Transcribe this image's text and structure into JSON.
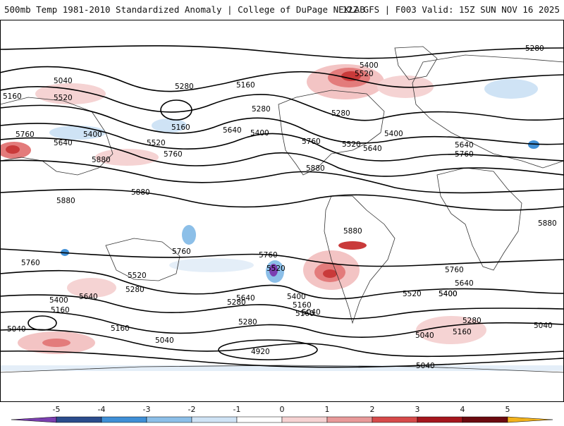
{
  "header": {
    "title_left": "500mb Temp 1981-2010 Standardized Anomaly | College of DuPage NEXLAB",
    "title_right": "12Z GFS | F003 Valid: 15Z SUN NOV 16 2025"
  },
  "map": {
    "contour_labels": [
      "5280",
      "5400",
      "5520",
      "5040",
      "5160",
      "5520",
      "5280",
      "5160",
      "5760",
      "5640",
      "5400",
      "5520",
      "5760",
      "5880",
      "5160",
      "5280",
      "5640",
      "5400",
      "5760",
      "5520",
      "5640",
      "5400",
      "5280",
      "5760",
      "5640",
      "5880",
      "5880",
      "5880",
      "5760",
      "5760",
      "5880",
      "5880",
      "5760",
      "5520",
      "5640",
      "5400",
      "5280",
      "5640",
      "5520",
      "5400",
      "5160",
      "5040",
      "5400",
      "5160",
      "5280",
      "5040",
      "5160",
      "5040",
      "5160",
      "5280",
      "5640",
      "5520",
      "5400",
      "5760",
      "5040",
      "4920",
      "5040",
      "5280",
      "5160",
      "5040"
    ]
  },
  "colorbar": {
    "ticks": [
      "-5",
      "-4",
      "-3",
      "-2",
      "-1",
      "0",
      "1",
      "2",
      "3",
      "4",
      "5"
    ],
    "colors": [
      "#7b3fb0",
      "#2b4c8c",
      "#3f8fd6",
      "#8cbfe8",
      "#cfe3f5",
      "#ffffff",
      "#f6d2d2",
      "#e89a9a",
      "#d64a4a",
      "#a5161d",
      "#6b0a0f",
      "#f2b21c"
    ]
  }
}
